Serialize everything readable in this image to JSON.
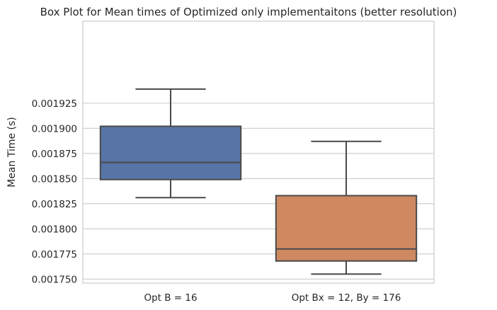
{
  "chart_data": {
    "type": "box",
    "title": "Box Plot for Mean times of Optimized only implementaitons (better resolution)",
    "xlabel": "",
    "ylabel": "Mean Time (s)",
    "ylim": [
      0.001746,
      0.0020065
    ],
    "grid": "horizontal",
    "y_ticks": [
      0.00175,
      0.001775,
      0.0018,
      0.001825,
      0.00185,
      0.001875,
      0.0019,
      0.001925
    ],
    "y_tick_labels": [
      "0.001750",
      "0.001775",
      "0.001800",
      "0.001825",
      "0.001850",
      "0.001875",
      "0.001900",
      "0.001925"
    ],
    "categories": [
      "Opt B = 16",
      "Opt Bx = 12, By = 176"
    ],
    "boxes": [
      {
        "category": "Opt B = 16",
        "whisker_low": 0.001831,
        "q1": 0.001849,
        "median": 0.001866,
        "q3": 0.001902,
        "whisker_high": 0.001939,
        "color": "#5874a7"
      },
      {
        "category": "Opt Bx = 12, By = 176",
        "whisker_low": 0.001755,
        "q1": 0.001768,
        "median": 0.00178,
        "q3": 0.001833,
        "whisker_high": 0.001887,
        "color": "#ce8961"
      }
    ]
  }
}
